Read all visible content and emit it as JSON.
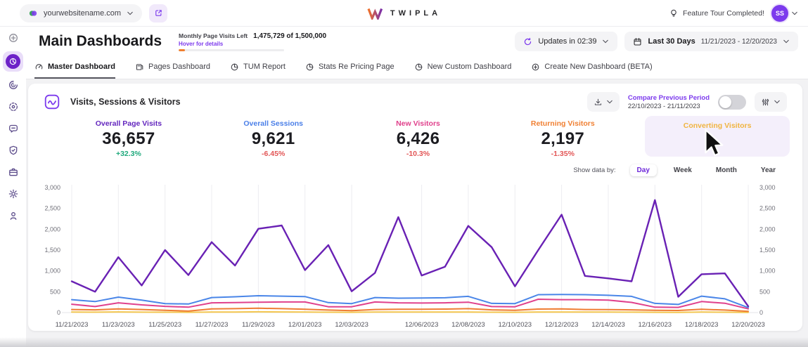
{
  "topbar": {
    "website": "yourwebsitename.com",
    "brand": "TWIPLA",
    "feature_tour": "Feature Tour Completed!",
    "avatar_initials": "SS"
  },
  "header": {
    "title": "Main Dashboards",
    "quota_label": "Monthly Page Visits Left",
    "quota_hover": "Hover for details",
    "quota_value": "1,475,729 of 1,500,000",
    "quota_used_pct": 6,
    "updates_label": "Updates in 02:39",
    "range_label": "Last 30 Days",
    "range_dates": "11/21/2023 - 12/20/2023"
  },
  "tabs": [
    {
      "label": "Master Dashboard",
      "icon": "gauge-icon",
      "active": true
    },
    {
      "label": "Pages Dashboard",
      "icon": "pages-icon",
      "active": false
    },
    {
      "label": "TUM Report",
      "icon": "circle-chart-icon",
      "active": false
    },
    {
      "label": "Stats Re Pricing Page",
      "icon": "circle-chart-icon",
      "active": false
    },
    {
      "label": "New Custom Dashboard",
      "icon": "circle-chart-icon",
      "active": false
    },
    {
      "label": "Create New Dashboard (BETA)",
      "icon": "plus-circle-icon",
      "active": false
    }
  ],
  "sidebar": {
    "items": [
      {
        "name": "sidebar-item-add",
        "icon": "add-circle-icon",
        "active": false
      },
      {
        "name": "sidebar-item-dashboard",
        "icon": "dashboard-icon",
        "active": true
      },
      {
        "name": "sidebar-item-visitors",
        "icon": "visitors-icon",
        "active": false
      },
      {
        "name": "sidebar-item-behavior",
        "icon": "behavior-icon",
        "active": false
      },
      {
        "name": "sidebar-item-communication",
        "icon": "chat-icon",
        "active": false
      },
      {
        "name": "sidebar-item-privacy",
        "icon": "shield-icon",
        "active": false
      },
      {
        "name": "sidebar-item-company",
        "icon": "briefcase-icon",
        "active": false
      },
      {
        "name": "sidebar-item-settings",
        "icon": "gear-icon",
        "active": false
      },
      {
        "name": "sidebar-item-support",
        "icon": "person-pin-icon",
        "active": false
      }
    ]
  },
  "card": {
    "title": "Visits, Sessions & Visitors",
    "compare_label": "Compare Previous Period",
    "compare_dates": "22/10/2023 - 21/11/2023",
    "compare_toggle_on": false,
    "show_data_by": "Show data by:",
    "granularities": [
      {
        "label": "Day",
        "selected": true
      },
      {
        "label": "Week",
        "selected": false
      },
      {
        "label": "Month",
        "selected": false
      },
      {
        "label": "Year",
        "selected": false
      }
    ],
    "metrics": [
      {
        "label": "Overall Page Visits",
        "value": "36,657",
        "delta": "+32.3%",
        "delta_dir": "up",
        "color": "#6326be",
        "highlighted": false
      },
      {
        "label": "Overall Sessions",
        "value": "9,621",
        "delta": "-6.45%",
        "delta_dir": "down",
        "color": "#4a7fe8",
        "highlighted": false
      },
      {
        "label": "New Visitors",
        "value": "6,426",
        "delta": "-10.3%",
        "delta_dir": "down",
        "color": "#e0418c",
        "highlighted": false
      },
      {
        "label": "Returning Visitors",
        "value": "2,197",
        "delta": "-1.35%",
        "delta_dir": "down",
        "color": "#f08033",
        "highlighted": false
      },
      {
        "label": "Converting Visitors",
        "value": "",
        "delta": "",
        "delta_dir": "",
        "color": "#f0b43f",
        "highlighted": true
      }
    ]
  },
  "chart_data": {
    "type": "line",
    "title": "Visits, Sessions & Visitors",
    "xlabel": "",
    "ylabel": "",
    "ylim": [
      0,
      3000
    ],
    "yticks": [
      0,
      500,
      1000,
      1500,
      2000,
      2500,
      3000
    ],
    "grid": "vertical",
    "legend_position": "none",
    "x_dates": [
      "11/21/2023",
      "11/22/2023",
      "11/23/2023",
      "11/24/2023",
      "11/25/2023",
      "11/26/2023",
      "11/27/2023",
      "11/28/2023",
      "11/29/2023",
      "11/30/2023",
      "12/01/2023",
      "12/02/2023",
      "12/03/2023",
      "12/04/2023",
      "12/05/2023",
      "12/06/2023",
      "12/07/2023",
      "12/08/2023",
      "12/09/2023",
      "12/10/2023",
      "12/11/2023",
      "12/12/2023",
      "12/13/2023",
      "12/14/2023",
      "12/15/2023",
      "12/16/2023",
      "12/17/2023",
      "12/18/2023",
      "12/19/2023",
      "12/20/2023"
    ],
    "tick_labels": [
      "11/21/2023",
      "11/23/2023",
      "11/25/2023",
      "11/27/2023",
      "11/29/2023",
      "12/01/2023",
      "12/03/2023",
      "12/06/2023",
      "12/08/2023",
      "12/10/2023",
      "12/12/2023",
      "12/14/2023",
      "12/16/2023",
      "12/18/2023",
      "12/20/2023"
    ],
    "tick_day_indices": [
      0,
      2,
      4,
      6,
      8,
      10,
      12,
      15,
      17,
      19,
      21,
      23,
      25,
      27,
      29
    ],
    "series": [
      {
        "name": "Overall Page Visits",
        "color": "#6921b4",
        "width": 2.4,
        "values": [
          750,
          500,
          1330,
          650,
          1500,
          900,
          1690,
          1130,
          2010,
          2090,
          1020,
          1620,
          510,
          950,
          2290,
          890,
          1100,
          2080,
          1570,
          630,
          1500,
          2350,
          880,
          820,
          750,
          2700,
          380,
          920,
          940,
          150
        ]
      },
      {
        "name": "Overall Sessions",
        "color": "#4a86e8",
        "width": 2,
        "values": [
          310,
          265,
          370,
          300,
          215,
          205,
          360,
          380,
          405,
          395,
          385,
          240,
          215,
          360,
          345,
          350,
          355,
          390,
          220,
          215,
          430,
          435,
          430,
          415,
          390,
          220,
          195,
          395,
          330,
          120
        ]
      },
      {
        "name": "New Visitors",
        "color": "#e0418c",
        "width": 2,
        "values": [
          200,
          145,
          235,
          185,
          150,
          130,
          235,
          240,
          250,
          255,
          255,
          140,
          140,
          255,
          235,
          230,
          235,
          250,
          145,
          140,
          320,
          310,
          310,
          300,
          245,
          130,
          125,
          265,
          225,
          90
        ]
      },
      {
        "name": "Returning Visitors",
        "color": "#ef7d33",
        "width": 2,
        "values": [
          75,
          65,
          90,
          75,
          55,
          35,
          90,
          95,
          105,
          95,
          80,
          60,
          45,
          75,
          80,
          80,
          85,
          95,
          65,
          55,
          85,
          90,
          75,
          70,
          65,
          55,
          50,
          80,
          60,
          30
        ]
      },
      {
        "name": "Converting Visitors",
        "color": "#f3c64f",
        "width": 2,
        "values": [
          12,
          10,
          15,
          10,
          8,
          6,
          14,
          14,
          18,
          15,
          12,
          8,
          6,
          12,
          12,
          12,
          12,
          14,
          8,
          6,
          14,
          14,
          12,
          12,
          10,
          6,
          5,
          12,
          8,
          4
        ]
      }
    ]
  }
}
